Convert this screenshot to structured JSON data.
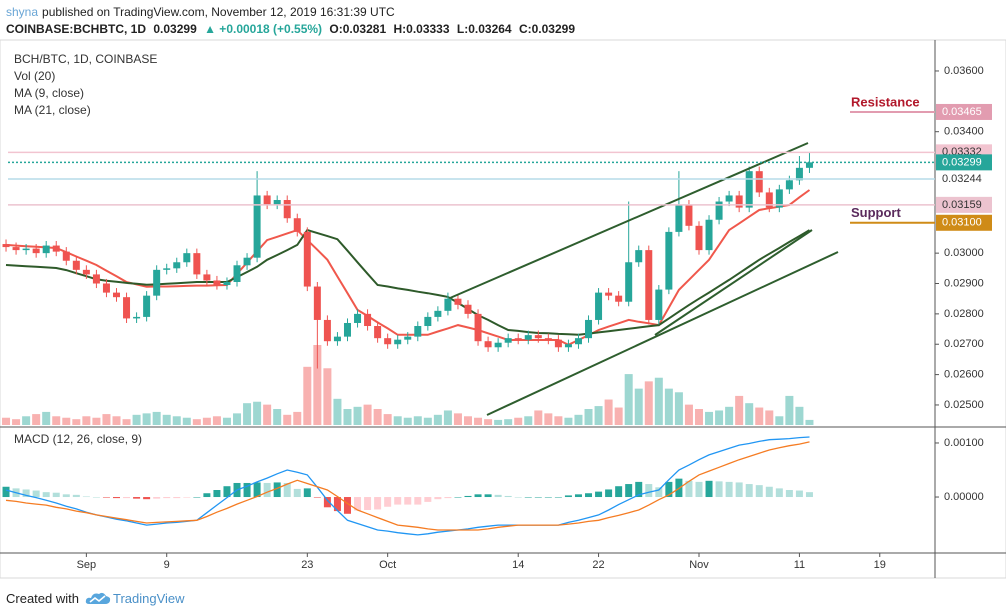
{
  "header": {
    "author": "shyna",
    "published": "published on TradingView.com, November 12, 2019 16:31:39 UTC",
    "symbol": "COINBASE:BCHBTC, 1D",
    "last": "0.03299",
    "change": "▲ +0.00018 (+0.55%)",
    "ohlc": [
      {
        "label": "O:",
        "value": "0.03281"
      },
      {
        "label": "H:",
        "value": "0.03333"
      },
      {
        "label": "L:",
        "value": "0.03264"
      },
      {
        "label": "C:",
        "value": "0.03299"
      }
    ]
  },
  "chart_data": [
    {
      "type": "candlestick",
      "title": "BCH/BTC, 1D, COINBASE",
      "volume_label": "Vol (20)",
      "up_color": "#26a69a",
      "down_color": "#ef5350",
      "open": [
        0.0303,
        0.0302,
        0.0301,
        0.03015,
        0.03,
        0.03025,
        0.03005,
        0.02975,
        0.02945,
        0.0293,
        0.029,
        0.0287,
        0.02855,
        0.02785,
        0.0279,
        0.0286,
        0.02945,
        0.0295,
        0.0297,
        0.03,
        0.0293,
        0.0291,
        0.02895,
        0.02905,
        0.0296,
        0.02985,
        0.0319,
        0.0316,
        0.03175,
        0.03115,
        0.0307,
        0.0289,
        0.0278,
        0.0271,
        0.02725,
        0.0277,
        0.028,
        0.0276,
        0.0272,
        0.027,
        0.02715,
        0.02725,
        0.0276,
        0.0279,
        0.0281,
        0.0285,
        0.0283,
        0.028,
        0.0271,
        0.0269,
        0.02705,
        0.0272,
        0.02715,
        0.0273,
        0.0272,
        0.02715,
        0.0269,
        0.027,
        0.0272,
        0.0278,
        0.0287,
        0.0286,
        0.0284,
        0.0297,
        0.0301,
        0.0278,
        0.0288,
        0.0307,
        0.0316,
        0.0309,
        0.0301,
        0.0311,
        0.0317,
        0.0319,
        0.0315,
        0.0327,
        0.032,
        0.0315,
        0.0321,
        0.0324,
        0.03281
      ],
      "high": [
        0.03045,
        0.03035,
        0.0303,
        0.0303,
        0.0304,
        0.0304,
        0.0302,
        0.0299,
        0.0296,
        0.02945,
        0.02915,
        0.02885,
        0.0287,
        0.02805,
        0.02875,
        0.0296,
        0.02965,
        0.02985,
        0.03015,
        0.03015,
        0.02945,
        0.02925,
        0.0292,
        0.02975,
        0.03,
        0.0327,
        0.03205,
        0.0319,
        0.0319,
        0.0313,
        0.03085,
        0.02905,
        0.02795,
        0.0274,
        0.02785,
        0.02815,
        0.02815,
        0.02775,
        0.02735,
        0.0273,
        0.0274,
        0.02775,
        0.02805,
        0.02825,
        0.0287,
        0.02865,
        0.02845,
        0.02815,
        0.02725,
        0.0272,
        0.02735,
        0.02735,
        0.02745,
        0.02745,
        0.02735,
        0.0273,
        0.02715,
        0.02735,
        0.02795,
        0.02885,
        0.02885,
        0.02875,
        0.0317,
        0.03025,
        0.03025,
        0.02895,
        0.03085,
        0.0327,
        0.03175,
        0.03105,
        0.03125,
        0.03185,
        0.03205,
        0.03205,
        0.03285,
        0.03285,
        0.03215,
        0.03225,
        0.03255,
        0.0332,
        0.03333
      ],
      "low": [
        0.03005,
        0.02995,
        0.02995,
        0.02985,
        0.02985,
        0.0299,
        0.0296,
        0.0293,
        0.02915,
        0.02885,
        0.02855,
        0.0284,
        0.0277,
        0.0277,
        0.02775,
        0.02845,
        0.0293,
        0.02935,
        0.02955,
        0.02915,
        0.02895,
        0.0288,
        0.0288,
        0.0289,
        0.02945,
        0.0297,
        0.03145,
        0.03145,
        0.031,
        0.03055,
        0.02875,
        0.0262,
        0.02695,
        0.02695,
        0.0271,
        0.02755,
        0.02745,
        0.02705,
        0.02685,
        0.02685,
        0.027,
        0.0271,
        0.02745,
        0.02775,
        0.02795,
        0.02815,
        0.02785,
        0.02695,
        0.02675,
        0.02675,
        0.0269,
        0.027,
        0.027,
        0.02705,
        0.027,
        0.02675,
        0.02675,
        0.02685,
        0.02705,
        0.02765,
        0.02845,
        0.02825,
        0.02825,
        0.02955,
        0.02765,
        0.02765,
        0.02865,
        0.03055,
        0.03075,
        0.02995,
        0.02995,
        0.03095,
        0.03155,
        0.03135,
        0.03135,
        0.03185,
        0.03135,
        0.03135,
        0.03195,
        0.03225,
        0.03264
      ],
      "close": [
        0.0302,
        0.0301,
        0.03015,
        0.03,
        0.03025,
        0.03005,
        0.02975,
        0.02945,
        0.0293,
        0.029,
        0.0287,
        0.02855,
        0.02785,
        0.0279,
        0.0286,
        0.02945,
        0.0295,
        0.0297,
        0.03,
        0.0293,
        0.0291,
        0.02895,
        0.02905,
        0.0296,
        0.02985,
        0.0319,
        0.0316,
        0.03175,
        0.03115,
        0.0307,
        0.0289,
        0.0278,
        0.0271,
        0.02725,
        0.0277,
        0.028,
        0.0276,
        0.0272,
        0.027,
        0.02715,
        0.02725,
        0.0276,
        0.0279,
        0.0281,
        0.0285,
        0.0283,
        0.028,
        0.0271,
        0.0269,
        0.02705,
        0.0272,
        0.02715,
        0.0273,
        0.0272,
        0.02715,
        0.0269,
        0.027,
        0.0272,
        0.0278,
        0.0287,
        0.0286,
        0.0284,
        0.0297,
        0.0301,
        0.0278,
        0.0288,
        0.0307,
        0.0316,
        0.0309,
        0.0301,
        0.0311,
        0.0317,
        0.0319,
        0.0315,
        0.0327,
        0.032,
        0.0315,
        0.0321,
        0.0324,
        0.03281,
        0.03299
      ],
      "volume": [
        10,
        8,
        12,
        15,
        18,
        12,
        10,
        8,
        12,
        10,
        15,
        12,
        8,
        14,
        16,
        18,
        14,
        12,
        10,
        8,
        10,
        12,
        10,
        16,
        30,
        32,
        28,
        22,
        14,
        18,
        80,
        110,
        78,
        36,
        22,
        25,
        28,
        22,
        15,
        12,
        10,
        12,
        10,
        14,
        20,
        16,
        12,
        10,
        8,
        7,
        8,
        10,
        12,
        20,
        16,
        12,
        10,
        14,
        22,
        26,
        35,
        24,
        70,
        50,
        60,
        65,
        50,
        45,
        28,
        22,
        18,
        20,
        25,
        40,
        30,
        24,
        20,
        12,
        40,
        25,
        7
      ],
      "series": [
        {
          "name": "MA (9, close)",
          "color": "#f0584c",
          "values": [
            0.03027,
            0.03025,
            0.03023,
            0.03021,
            0.03019,
            0.03017,
            0.03003,
            0.02989,
            0.02975,
            0.02961,
            0.02942,
            0.02924,
            0.02905,
            0.02897,
            0.02889,
            0.0289,
            0.0289,
            0.02891,
            0.02892,
            0.02893,
            0.02893,
            0.02894,
            0.02895,
            0.02932,
            0.02969,
            0.03006,
            0.03043,
            0.03054,
            0.03065,
            0.03076,
            0.03043,
            0.03011,
            0.02978,
            0.02923,
            0.02868,
            0.02813,
            0.02793,
            0.02772,
            0.02752,
            0.02731,
            0.02731,
            0.02731,
            0.02731,
            0.02742,
            0.02752,
            0.02763,
            0.02755,
            0.02747,
            0.02736,
            0.02725,
            0.02714,
            0.02714,
            0.02714,
            0.02714,
            0.02714,
            0.02714,
            0.02698,
            0.02714,
            0.0273,
            0.02747,
            0.02758,
            0.02769,
            0.0278,
            0.02774,
            0.02769,
            0.02763,
            0.02821,
            0.02879,
            0.02912,
            0.02945,
            0.02978,
            0.03027,
            0.03076,
            0.03098,
            0.0312,
            0.03142,
            0.03148,
            0.03153,
            0.03159,
            0.03184,
            0.03208
          ]
        },
        {
          "name": "MA (21, close)",
          "color": "#2e5a2a",
          "values": [
            0.02961,
            0.02959,
            0.02957,
            0.02955,
            0.02953,
            0.02951,
            0.02944,
            0.02934,
            0.02924,
            0.02914,
            0.02909,
            0.02906,
            0.02902,
            0.02899,
            0.02896,
            0.02897,
            0.02899,
            0.02901,
            0.02903,
            0.02905,
            0.02905,
            0.02905,
            0.02905,
            0.02921,
            0.02938,
            0.02955,
            0.02978,
            0.02994,
            0.0301,
            0.03027,
            0.03076,
            0.03066,
            0.03056,
            0.03046,
            0.03008,
            0.0297,
            0.02932,
            0.02895,
            0.0289,
            0.02884,
            0.02879,
            0.02873,
            0.02868,
            0.02862,
            0.02856,
            0.02836,
            0.02816,
            0.02796,
            0.0278,
            0.02763,
            0.02747,
            0.02744,
            0.0274,
            0.02737,
            0.02736,
            0.02734,
            0.02733,
            0.02731,
            0.02735,
            0.02739,
            0.02743,
            0.02747,
            0.02751,
            0.02755,
            0.02759,
            0.02763,
            0.02785,
            0.02807,
            0.02829,
            0.0285,
            0.0287,
            0.02891,
            0.02912,
            0.02934,
            0.02956,
            0.02978,
            0.02998,
            0.03017,
            0.03037,
            0.03056,
            0.03076
          ]
        }
      ],
      "xlim": [
        -0.6,
        92.5
      ],
      "xticks": [
        {
          "value": 8,
          "label": "Sep"
        },
        {
          "value": 16,
          "label": "9"
        },
        {
          "value": 30,
          "label": "23"
        },
        {
          "value": 38,
          "label": "Oct"
        },
        {
          "value": 51,
          "label": "14"
        },
        {
          "value": 59,
          "label": "22"
        },
        {
          "value": 69,
          "label": "Nov"
        },
        {
          "value": 79,
          "label": "11"
        },
        {
          "value": 87,
          "label": "19"
        }
      ],
      "ylim": [
        0.02434,
        0.03702
      ],
      "yticks": [
        {
          "value": 0.036,
          "label": "0.03600"
        },
        {
          "value": 0.034,
          "label": "0.03400"
        },
        {
          "value": 0.03,
          "label": "0.03000"
        },
        {
          "value": 0.029,
          "label": "0.02900"
        },
        {
          "value": 0.028,
          "label": "0.02800"
        },
        {
          "value": 0.027,
          "label": "0.02700"
        },
        {
          "value": 0.026,
          "label": "0.02600"
        },
        {
          "value": 0.025,
          "label": "0.02500"
        }
      ],
      "price_lines": [
        {
          "value": 0.03465,
          "label": "0.03465",
          "note": "Resistance",
          "note_color": "#b2182b",
          "color": "#e29cb0",
          "text_color": "#ffffff",
          "span": "right",
          "dash": false
        },
        {
          "value": 0.03332,
          "label": "0.03332",
          "color": "#f2c4d0",
          "text_color": "#333333",
          "span": "full",
          "dash": false
        },
        {
          "value": 0.03299,
          "label": "0.03299",
          "color": "#26a69a",
          "text_color": "#ffffff",
          "span": "full",
          "dash": true
        },
        {
          "value": 0.03244,
          "label": "0.03244",
          "color": "#b5dbe8",
          "text_color": "#333333",
          "span": "full",
          "dash": false,
          "box": "#ffffff"
        },
        {
          "value": 0.03159,
          "label": "0.03159",
          "color": "#ecc3cf",
          "text_color": "#333333",
          "span": "full",
          "dash": false
        },
        {
          "value": 0.031,
          "label": "0.03100",
          "note": "Support",
          "note_color": "#5a2a5c",
          "color": "#cf8b17",
          "text_color": "#ffffff",
          "span": "right",
          "dash": false
        }
      ]
    },
    {
      "type": "macd",
      "title": "MACD (12, 26, close, 9)",
      "series": [
        {
          "color": "#2196f3",
          "values": [
            0.00013,
            8e-05,
            3e-05,
            -1e-05,
            -6e-05,
            -0.00011,
            -0.00017,
            -0.00022,
            -0.00028,
            -0.00033,
            -0.00037,
            -0.00041,
            -0.00044,
            -0.00048,
            -0.00052,
            -0.0005,
            -0.00048,
            -0.00047,
            -0.00045,
            -0.00043,
            -0.00029,
            -0.00015,
            -1e-05,
            0.00013,
            0.0002,
            0.00028,
            0.00035,
            0.00043,
            0.0005,
            0.00046,
            0.00041,
            0.00018,
            -6e-05,
            -0.00025,
            -0.00043,
            -0.00049,
            -0.00055,
            -0.00061,
            -0.00063,
            -0.00066,
            -0.00068,
            -0.0007,
            -0.00068,
            -0.00065,
            -0.00063,
            -0.00061,
            -0.00059,
            -0.00056,
            -0.00054,
            -0.00052,
            -0.00052,
            -0.00052,
            -0.00052,
            -0.00052,
            -0.00052,
            -0.00052,
            -0.00047,
            -0.00043,
            -0.00038,
            -0.00033,
            -0.00024,
            -0.00014,
            -5e-05,
            4e-05,
            9e-05,
            0.00013,
            0.00032,
            0.0005,
            0.00059,
            0.00069,
            0.00078,
            0.00084,
            0.0009,
            0.00096,
            0.00099,
            0.00103,
            0.00106,
            0.00107,
            0.00108,
            0.0011,
            0.00111
          ]
        },
        {
          "color": "#f57c23",
          "values": [
            -6e-05,
            -8e-05,
            -0.00011,
            -0.00013,
            -0.00015,
            -0.00019,
            -0.00022,
            -0.00026,
            -0.00029,
            -0.00033,
            -0.00036,
            -0.00039,
            -0.00042,
            -0.00045,
            -0.00048,
            -0.00047,
            -0.00046,
            -0.00045,
            -0.00044,
            -0.00043,
            -0.00036,
            -0.00028,
            -0.00021,
            -0.00013,
            -6e-05,
            1e-05,
            9e-05,
            0.00016,
            0.00024,
            0.00031,
            0.00025,
            0.00019,
            0.00013,
            1e-05,
            -0.00012,
            -0.00024,
            -0.00031,
            -0.00038,
            -0.00045,
            -0.00052,
            -0.00054,
            -0.00056,
            -0.00059,
            -0.00061,
            -0.00061,
            -0.00061,
            -0.00061,
            -0.00061,
            -0.00059,
            -0.00056,
            -0.00054,
            -0.00052,
            -0.00052,
            -0.00052,
            -0.00052,
            -0.00052,
            -0.0005,
            -0.00048,
            -0.00045,
            -0.00043,
            -0.00038,
            -0.00034,
            -0.00029,
            -0.00024,
            -0.00015,
            -5e-05,
            4e-05,
            0.00016,
            0.00029,
            0.00041,
            0.00048,
            0.00055,
            0.00062,
            0.00069,
            0.00075,
            0.00081,
            0.00087,
            0.00091,
            0.00095,
            0.00098,
            0.00102
          ]
        }
      ],
      "histogram": [
        0.00019,
        0.00016,
        0.00014,
        0.00012,
        9e-05,
        8e-05,
        5e-05,
        4e-05,
        1e-05,
        0,
        -1e-05,
        -2e-05,
        -2e-05,
        -3e-05,
        -4e-05,
        -3e-05,
        -2e-05,
        -2e-05,
        -1e-05,
        0,
        7e-05,
        0.00013,
        0.0002,
        0.00026,
        0.00026,
        0.00027,
        0.00026,
        0.00027,
        0.00026,
        0.00015,
        0.00016,
        -1e-05,
        -0.00019,
        -0.00026,
        -0.00031,
        -0.00025,
        -0.00024,
        -0.00023,
        -0.00018,
        -0.00014,
        -0.00014,
        -0.00014,
        -9e-05,
        -4e-05,
        -2e-05,
        0,
        2e-05,
        5e-05,
        5e-05,
        4e-05,
        2e-05,
        0,
        0,
        0,
        0,
        0,
        3e-05,
        5e-05,
        7e-05,
        0.0001,
        0.00014,
        0.0002,
        0.00024,
        0.00028,
        0.00024,
        0.00018,
        0.00028,
        0.00034,
        0.0003,
        0.00028,
        0.0003,
        0.00029,
        0.00028,
        0.00027,
        0.00024,
        0.00022,
        0.00019,
        0.00016,
        0.00013,
        0.00012,
        9e-05
      ],
      "xlim": [
        -0.6,
        92.5
      ],
      "ylim": [
        -0.00098,
        0.00124
      ],
      "yticks": [
        {
          "value": 0.001,
          "label": "0.00100"
        },
        {
          "value": 0,
          "label": "0.00000"
        }
      ]
    }
  ],
  "footer": {
    "text": "Created with",
    "brand": "TradingView"
  }
}
